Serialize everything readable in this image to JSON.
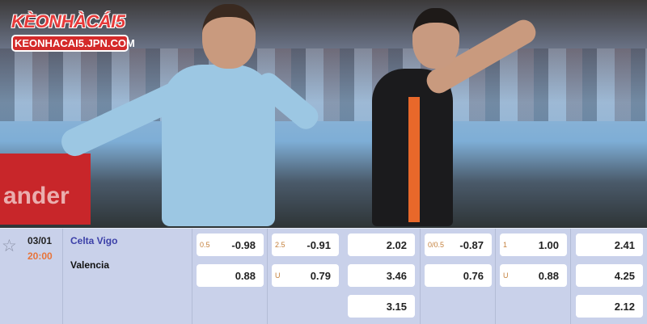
{
  "logo": {
    "brand": "KÈONHÀCÁI5",
    "url": "KEONHACAI5.JPN.COM"
  },
  "photo": {
    "banner_text": "ander"
  },
  "match": {
    "date": "03/01",
    "time": "20:00",
    "home": "Celta Vigo",
    "away": "Valencia",
    "colors": {
      "home": "#3c40a8",
      "time": "#e8743a",
      "handicap_label": "#c4803c"
    },
    "markets": [
      {
        "rows": [
          {
            "label": "0.5",
            "value": "-0.98"
          },
          {
            "label": "",
            "value": "0.88"
          }
        ]
      },
      {
        "rows": [
          {
            "label": "2.5",
            "value": "-0.91"
          },
          {
            "label": "U",
            "value": "0.79"
          }
        ]
      },
      {
        "rows": [
          {
            "label": "",
            "value": "2.02"
          },
          {
            "label": "",
            "value": "3.46"
          },
          {
            "label": "",
            "value": "3.15"
          }
        ]
      },
      {
        "rows": [
          {
            "label": "0/0.5",
            "value": "-0.87"
          },
          {
            "label": "",
            "value": "0.76"
          }
        ]
      },
      {
        "rows": [
          {
            "label": "1",
            "value": "1.00"
          },
          {
            "label": "U",
            "value": "0.88"
          }
        ]
      },
      {
        "rows": [
          {
            "label": "",
            "value": "2.41"
          },
          {
            "label": "",
            "value": "4.25"
          },
          {
            "label": "",
            "value": "2.12"
          }
        ]
      }
    ]
  }
}
